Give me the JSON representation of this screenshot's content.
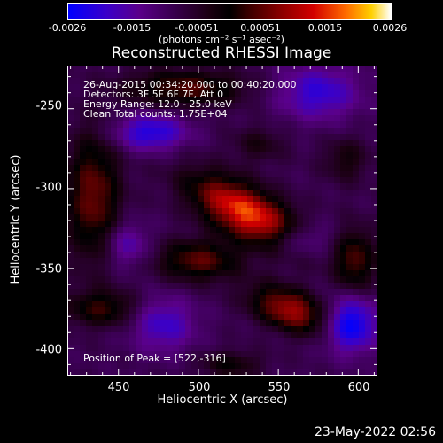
{
  "colorbar": {
    "tick_labels": [
      "-0.0026",
      "-0.0015",
      "-0.00051",
      "0.00051",
      "0.0015",
      "0.0026"
    ],
    "units": "(photons cm⁻² s⁻¹ asec⁻²)",
    "colors": [
      "#0000ff",
      "#5a008a",
      "#000000",
      "#d20000",
      "#ffd000",
      "#ffffff"
    ]
  },
  "title": "Reconstructed RHESSI Image",
  "info": {
    "time": "26-Aug-2015 00:34:20.000 to 00:40:20.000",
    "detectors": "Detectors: 3F 5F 6F 7F, Att 0",
    "energy": "Energy Range: 12.0 - 25.0 keV",
    "clean": "Clean     Total counts: 1.75E+04",
    "peak": "Position of Peak = [522,-316]"
  },
  "timestamp": "23-May-2022 02:56",
  "chart_data": {
    "type": "heatmap",
    "title": "Reconstructed RHESSI Image",
    "xlabel": "Heliocentric X (arcsec)",
    "ylabel": "Heliocentric Y (arcsec)",
    "xlim": [
      418,
      612
    ],
    "ylim": [
      -417,
      -223
    ],
    "x_ticks": [
      450,
      500,
      550,
      600
    ],
    "y_ticks": [
      -250,
      -300,
      -350,
      -400
    ],
    "color_range": [
      -0.0026,
      0.0026
    ],
    "peak": [
      522,
      -316
    ],
    "sources": [
      {
        "x": 530,
        "y": -315,
        "sigma_x": 26,
        "sigma_y": 11,
        "rot_deg": -28,
        "amp": 0.0026
      },
      {
        "x": 558,
        "y": -376,
        "sigma_x": 18,
        "sigma_y": 9,
        "rot_deg": -20,
        "amp": 0.0019
      },
      {
        "x": 500,
        "y": -345,
        "sigma_x": 18,
        "sigma_y": 9,
        "rot_deg": 0,
        "amp": 0.0014
      },
      {
        "x": 434,
        "y": -305,
        "sigma_x": 12,
        "sigma_y": 28,
        "rot_deg": 0,
        "amp": 0.0015
      },
      {
        "x": 492,
        "y": -237,
        "sigma_x": 26,
        "sigma_y": 8,
        "rot_deg": 0,
        "amp": 0.0013
      },
      {
        "x": 440,
        "y": -375,
        "sigma_x": 16,
        "sigma_y": 8,
        "rot_deg": 0,
        "amp": 0.0011
      },
      {
        "x": 598,
        "y": -345,
        "sigma_x": 9,
        "sigma_y": 14,
        "rot_deg": 0,
        "amp": 0.0013
      },
      {
        "x": 592,
        "y": -282,
        "sigma_x": 10,
        "sigma_y": 10,
        "rot_deg": 0,
        "amp": 0.0007
      },
      {
        "x": 538,
        "y": -272,
        "sigma_x": 12,
        "sigma_y": 8,
        "rot_deg": 0,
        "amp": 0.0006
      },
      {
        "x": 520,
        "y": -410,
        "sigma_x": 14,
        "sigma_y": 6,
        "rot_deg": 0,
        "amp": 0.0008
      },
      {
        "x": 470,
        "y": -265,
        "sigma_x": 16,
        "sigma_y": 8,
        "rot_deg": 0,
        "amp": -0.0014
      },
      {
        "x": 575,
        "y": -240,
        "sigma_x": 18,
        "sigma_y": 12,
        "rot_deg": 0,
        "amp": -0.0012
      },
      {
        "x": 595,
        "y": -385,
        "sigma_x": 12,
        "sigma_y": 12,
        "rot_deg": 0,
        "amp": -0.0018
      },
      {
        "x": 478,
        "y": -385,
        "sigma_x": 14,
        "sigma_y": 12,
        "rot_deg": 0,
        "amp": -0.0011
      },
      {
        "x": 563,
        "y": -332,
        "sigma_x": 14,
        "sigma_y": 8,
        "rot_deg": 0,
        "amp": -0.001
      },
      {
        "x": 455,
        "y": -335,
        "sigma_x": 10,
        "sigma_y": 10,
        "rot_deg": 0,
        "amp": -0.0009
      }
    ]
  }
}
